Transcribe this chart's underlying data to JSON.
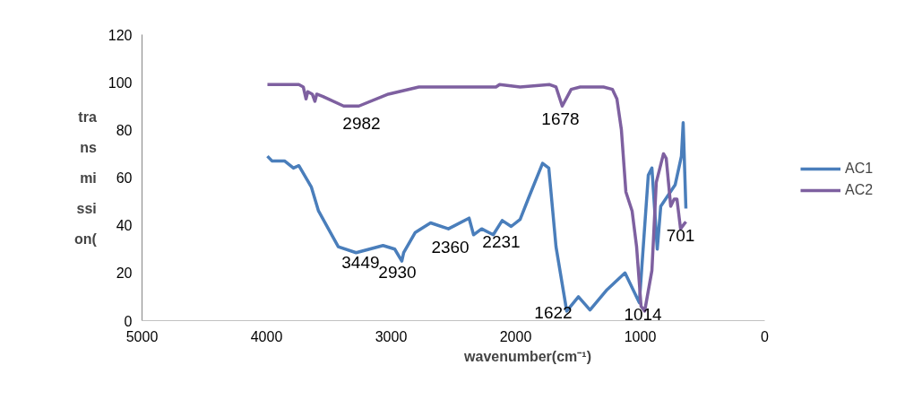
{
  "chart_data": {
    "type": "line",
    "xlabel": "wavenumber(cm⁻¹)",
    "ylabel": "transmission(",
    "xlim": [
      5000,
      0
    ],
    "xticks": [
      5000,
      4000,
      3000,
      2000,
      1000,
      0
    ],
    "ylim": [
      0,
      120
    ],
    "yticks": [
      0,
      20,
      40,
      60,
      80,
      100,
      120
    ],
    "grid": false,
    "legend": "right",
    "marker": "none",
    "line_style": "solid",
    "series": [
      {
        "name": "AC1",
        "color": "#4a7ebb",
        "x": [
          3993,
          3957,
          3856,
          3784,
          3741,
          3640,
          3583,
          3424,
          3281,
          3065,
          2971,
          2914,
          2899,
          2806,
          2683,
          2540,
          2374,
          2338,
          2273,
          2180,
          2108,
          2036,
          1964,
          1892,
          1784,
          1734,
          1676,
          1590,
          1496,
          1403,
          1266,
          1122,
          1007,
          935,
          906,
          863,
          835,
          719,
          669,
          655,
          633
        ],
        "values": [
          69,
          67,
          67,
          64,
          65,
          56,
          46,
          31,
          28.5,
          31.5,
          30,
          25,
          28.5,
          37,
          41,
          38.5,
          43,
          36,
          38.5,
          36,
          42,
          39.5,
          42.5,
          52,
          66,
          64,
          31,
          4,
          10,
          4.5,
          13,
          20,
          7.5,
          61,
          64,
          30,
          48,
          57,
          69,
          83,
          47
        ]
      },
      {
        "name": "AC2",
        "color": "#7e60a0",
        "x": [
          3993,
          3741,
          3705,
          3683,
          3669,
          3633,
          3612,
          3597,
          3547,
          3381,
          3259,
          3022,
          2777,
          2446,
          2158,
          2129,
          1964,
          1727,
          1676,
          1626,
          1554,
          1482,
          1295,
          1223,
          1187,
          1151,
          1115,
          1065,
          1029,
          993,
          964,
          906,
          871,
          813,
          791,
          755,
          727,
          705,
          676,
          633
        ],
        "values": [
          99,
          99,
          98,
          93,
          96,
          95,
          92,
          95,
          94,
          90,
          90,
          95,
          98,
          98,
          98,
          99,
          98,
          99,
          98,
          90,
          97,
          98,
          98,
          97,
          93,
          80,
          54,
          46,
          31,
          6,
          4,
          21,
          58,
          70,
          68,
          48,
          51,
          51,
          38.5,
          41.5
        ]
      }
    ],
    "annotations": [
      {
        "text": "2982",
        "x": 3259,
        "y": 90
      },
      {
        "text": "1678",
        "x": 1626,
        "y": 90
      },
      {
        "text": "3449",
        "x": 3281,
        "y": 28.5
      },
      {
        "text": "2930",
        "x": 2914,
        "y": 25
      },
      {
        "text": "2360",
        "x": 2338,
        "y": 36
      },
      {
        "text": "2231",
        "x": 2180,
        "y": 36
      },
      {
        "text": "1622",
        "x": 1590,
        "y": 4
      },
      {
        "text": "1014",
        "x": 1007,
        "y": 7.5
      },
      {
        "text": "701",
        "x": 676,
        "y": 38.5
      }
    ]
  }
}
